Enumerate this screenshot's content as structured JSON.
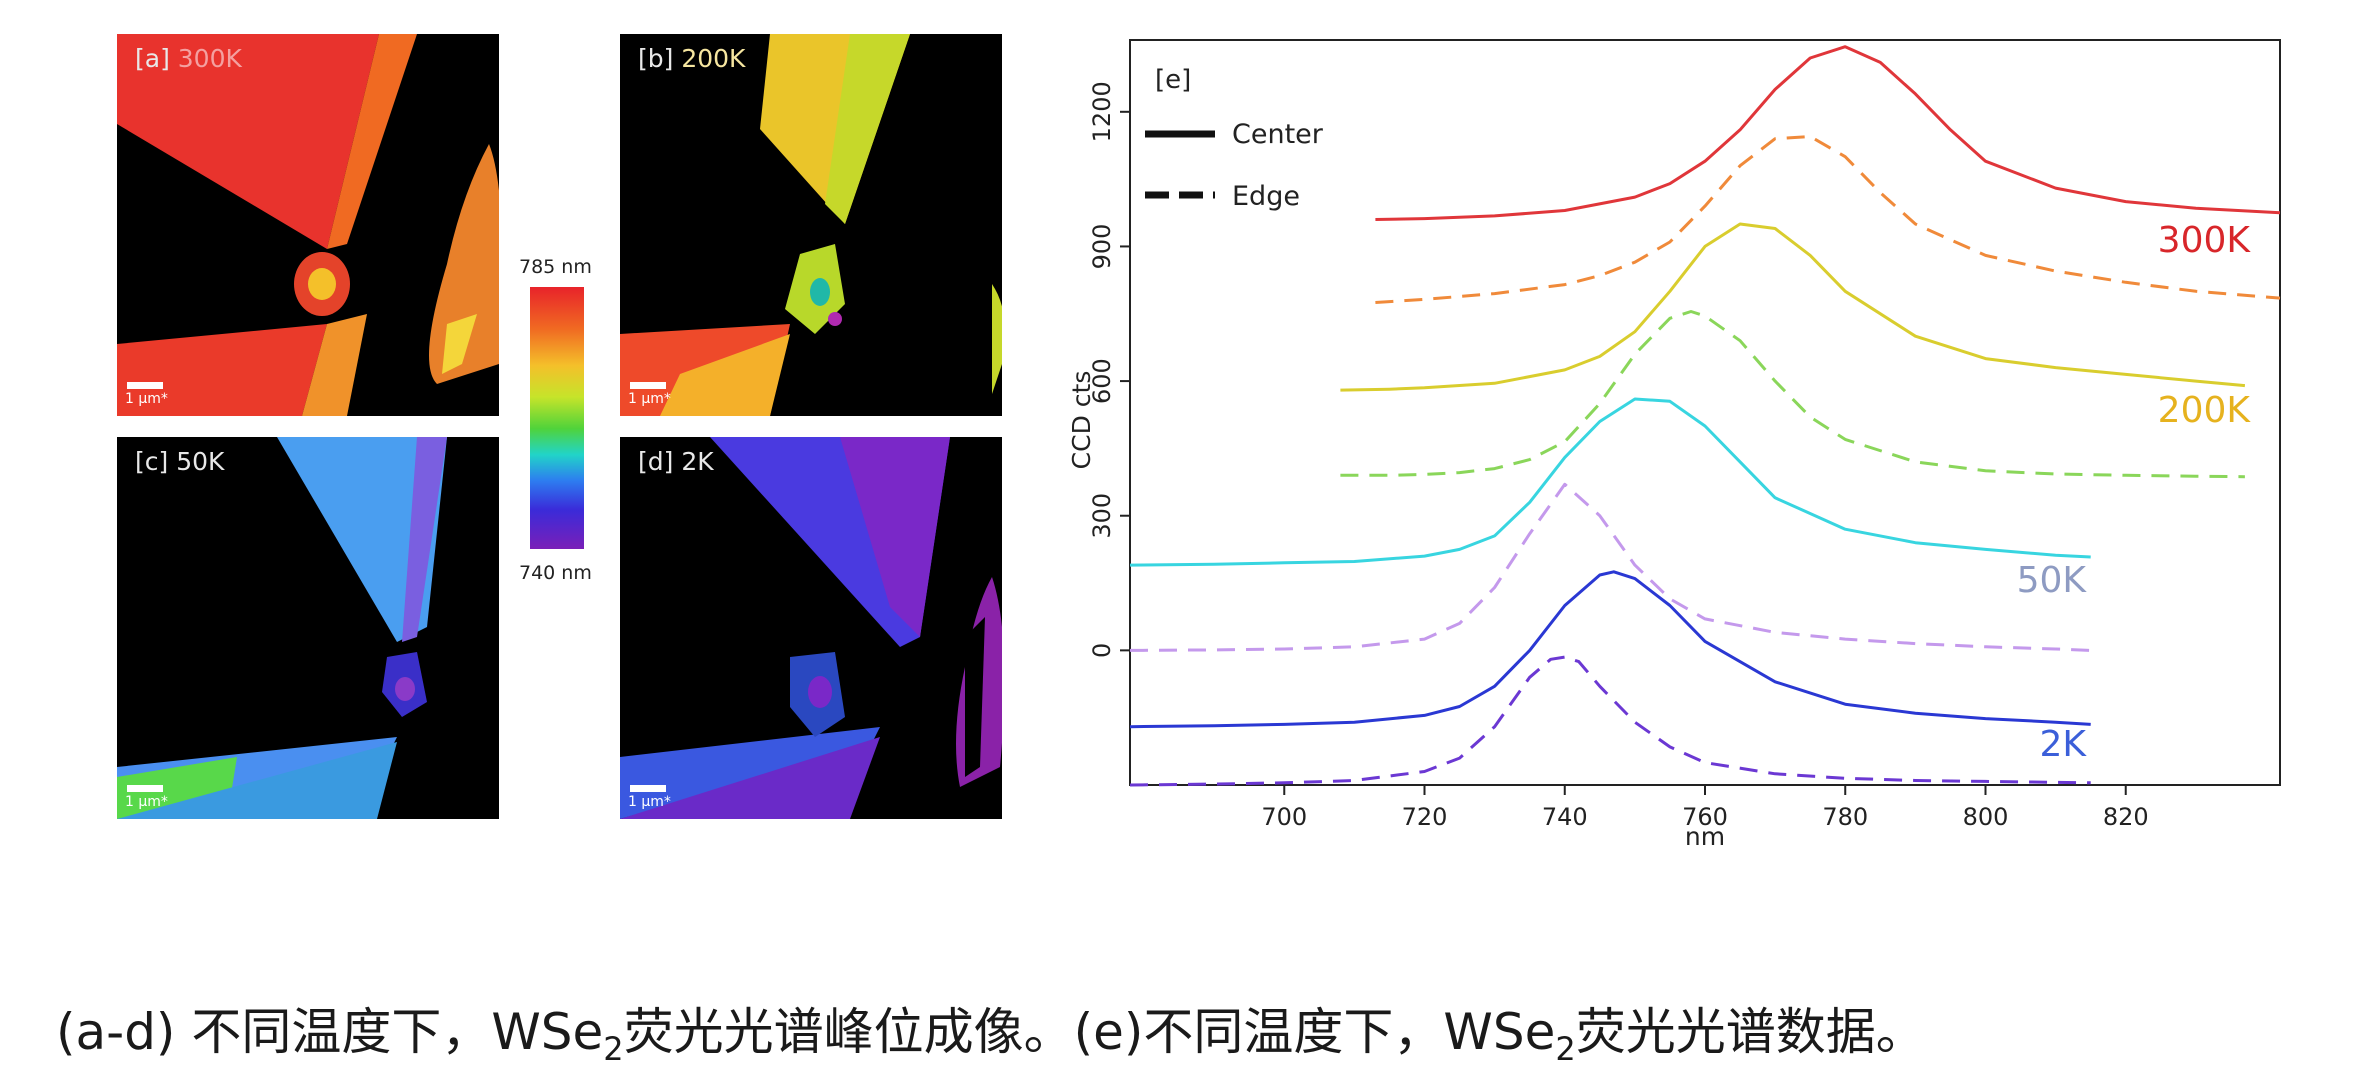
{
  "panels": [
    {
      "id": "a",
      "label": "[a] 300K",
      "label_prefix": "[a]",
      "label_temp": "300K",
      "scale_bar": "1 µm*"
    },
    {
      "id": "b",
      "label": "[b] 200K",
      "label_prefix": "[b]",
      "label_temp": "200K",
      "scale_bar": "1 µm*"
    },
    {
      "id": "c",
      "label": "[c] 50K",
      "label_prefix": "[c]",
      "label_temp": "50K",
      "scale_bar": "1 µm*"
    },
    {
      "id": "d",
      "label": "[d] 2K",
      "label_prefix": "[d]",
      "label_temp": "2K",
      "scale_bar": "1 µm*"
    }
  ],
  "colorbar": {
    "top_label": "785 nm",
    "bottom_label": "740 nm",
    "range_nm": [
      740,
      785
    ]
  },
  "chart_data": {
    "type": "line",
    "panel_label": "[e]",
    "xlabel": "nm",
    "ylabel": "CCD cts",
    "xlim": [
      678,
      842
    ],
    "ylim": [
      -300,
      1360
    ],
    "xticks": [
      700,
      720,
      740,
      760,
      780,
      800,
      820
    ],
    "yticks": [
      0,
      300,
      600,
      900,
      1200
    ],
    "legend": {
      "position": "top-left",
      "entries": [
        {
          "name": "Center",
          "style": "solid"
        },
        {
          "name": "Edge",
          "style": "dashed"
        }
      ]
    },
    "temperature_labels": [
      {
        "text": "300K",
        "color": "#d8262a"
      },
      {
        "text": "200K",
        "color": "#e6b21e"
      },
      {
        "text": "50K",
        "color": "#8e9bc2"
      },
      {
        "text": "2K",
        "color": "#3b5fd9"
      }
    ],
    "series": [
      {
        "temperature": "300K",
        "style": "solid",
        "color": "#e0363a",
        "x": [
          713,
          720,
          730,
          740,
          750,
          755,
          760,
          765,
          770,
          775,
          780,
          785,
          790,
          795,
          800,
          810,
          820,
          830,
          842
        ],
        "y": [
          960,
          962,
          968,
          980,
          1010,
          1040,
          1090,
          1160,
          1250,
          1320,
          1345,
          1310,
          1240,
          1160,
          1090,
          1030,
          1000,
          985,
          975
        ]
      },
      {
        "temperature": "300K",
        "style": "dashed",
        "color": "#f08a3a",
        "x": [
          713,
          720,
          730,
          740,
          745,
          750,
          755,
          760,
          765,
          770,
          775,
          780,
          785,
          790,
          800,
          810,
          820,
          830,
          842
        ],
        "y": [
          775,
          782,
          795,
          815,
          835,
          865,
          910,
          990,
          1080,
          1140,
          1145,
          1100,
          1020,
          950,
          880,
          845,
          820,
          800,
          785
        ]
      },
      {
        "temperature": "200K",
        "style": "solid",
        "color": "#d9cd2e",
        "x": [
          708,
          715,
          720,
          730,
          740,
          745,
          750,
          755,
          760,
          765,
          770,
          775,
          780,
          790,
          800,
          810,
          820,
          830,
          837
        ],
        "y": [
          580,
          582,
          585,
          595,
          625,
          655,
          710,
          800,
          900,
          950,
          940,
          880,
          800,
          700,
          650,
          630,
          615,
          600,
          590
        ]
      },
      {
        "temperature": "200K",
        "style": "dashed",
        "color": "#8ad65a",
        "x": [
          708,
          715,
          720,
          725,
          730,
          735,
          740,
          745,
          750,
          755,
          758,
          760,
          765,
          770,
          775,
          780,
          790,
          800,
          810,
          820,
          830,
          837
        ],
        "y": [
          390,
          390,
          392,
          396,
          405,
          425,
          465,
          550,
          660,
          740,
          755,
          745,
          690,
          600,
          520,
          470,
          420,
          400,
          393,
          390,
          388,
          387
        ]
      },
      {
        "temperature": "50K",
        "style": "solid",
        "color": "#38d5e0",
        "x": [
          678,
          690,
          700,
          710,
          720,
          725,
          730,
          735,
          740,
          745,
          750,
          755,
          760,
          765,
          770,
          780,
          790,
          800,
          810,
          815
        ],
        "y": [
          190,
          192,
          195,
          198,
          210,
          225,
          255,
          330,
          430,
          510,
          560,
          555,
          500,
          420,
          340,
          270,
          240,
          225,
          212,
          208
        ]
      },
      {
        "temperature": "50K",
        "style": "dashed",
        "color": "#c499ec",
        "x": [
          678,
          690,
          700,
          710,
          720,
          725,
          730,
          735,
          740,
          745,
          750,
          755,
          760,
          770,
          780,
          790,
          800,
          810,
          815
        ],
        "y": [
          0,
          1,
          3,
          8,
          25,
          60,
          140,
          260,
          370,
          300,
          190,
          115,
          70,
          40,
          25,
          15,
          8,
          3,
          0
        ]
      },
      {
        "temperature": "2K",
        "style": "solid",
        "color": "#2a38d3",
        "x": [
          678,
          690,
          700,
          710,
          720,
          725,
          730,
          735,
          740,
          745,
          747,
          750,
          755,
          760,
          770,
          780,
          790,
          800,
          810,
          815
        ],
        "y": [
          -170,
          -168,
          -165,
          -160,
          -145,
          -125,
          -80,
          0,
          100,
          168,
          175,
          160,
          100,
          20,
          -70,
          -120,
          -140,
          -152,
          -160,
          -165
        ]
      },
      {
        "temperature": "2K",
        "style": "dashed",
        "color": "#6b38d3",
        "x": [
          678,
          690,
          700,
          710,
          720,
          725,
          730,
          735,
          738,
          740,
          742,
          745,
          750,
          755,
          760,
          770,
          780,
          790,
          800,
          810,
          815
        ],
        "y": [
          -300,
          -298,
          -295,
          -290,
          -270,
          -240,
          -170,
          -60,
          -20,
          -15,
          -25,
          -80,
          -160,
          -215,
          -250,
          -275,
          -285,
          -290,
          -292,
          -294,
          -295
        ]
      }
    ]
  },
  "caption": {
    "part1": "(a-d) 不同温度下，WSe",
    "sub1": "2",
    "part2": "荧光光谱峰位成像。(e)不同温度下，WSe",
    "sub2": "2",
    "part3": "荧光光谱数据。"
  }
}
